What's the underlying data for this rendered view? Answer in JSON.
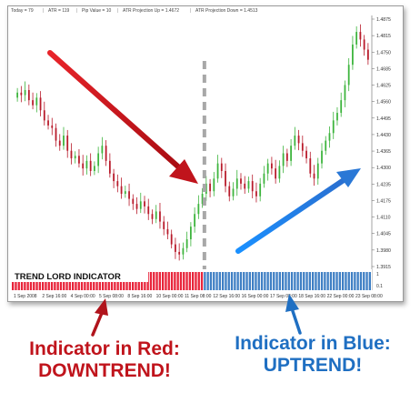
{
  "info_bar": {
    "today": "Today = 79",
    "atr": "ATR = 119",
    "pip_value": "Pip Value = 10",
    "atr_up": "ATR Projection Up = 1.4672",
    "atr_down": "ATR Projection Down = 1.4513"
  },
  "indicator": {
    "label": "TREND LORD INDICATOR",
    "red_fraction": 0.535,
    "colors": {
      "red": "#e8243a",
      "blue": "#3f7fc4"
    }
  },
  "captions": {
    "red_line1": "Indicator in Red:",
    "red_line2": "DOWNTREND!",
    "blue_line1": "Indicator in Blue:",
    "blue_line2": "UPTREND!",
    "red_color": "#c0141c",
    "blue_color": "#1f6fc2"
  },
  "chart_data": {
    "type": "candlestick",
    "price_axis": [
      "1.4875",
      "1.4815",
      "1.4750",
      "1.4685",
      "1.4625",
      "1.4560",
      "1.4495",
      "1.4430",
      "1.4365",
      "1.4300",
      "1.4235",
      "1.4175",
      "1.4110",
      "1.4045",
      "1.3980",
      "1.3915"
    ],
    "indicator_axis": [
      "1",
      "0.1"
    ],
    "x_ticks": [
      "1 Sep 2008",
      "2 Sep 16:00",
      "4 Sep 00:00",
      "5 Sep 08:00",
      "8 Sep 16:00",
      "10 Sep 00:00",
      "11 Sep 08:00",
      "12 Sep 16:00",
      "16 Sep 00:00",
      "17 Sep 08:00",
      "18 Sep 16:00",
      "22 Sep 00:00",
      "23 Sep 08:00"
    ],
    "ylim": [
      1.3895,
      1.4895
    ],
    "colors": {
      "up": "#3cb43c",
      "down": "#b81a2a",
      "divider": "#a8a8a8"
    },
    "closes": [
      1.459,
      1.458,
      1.46,
      1.456,
      1.454,
      1.457,
      1.452,
      1.448,
      1.446,
      1.445,
      1.44,
      1.438,
      1.442,
      1.436,
      1.433,
      1.434,
      1.431,
      1.429,
      1.432,
      1.428,
      1.43,
      1.435,
      1.438,
      1.432,
      1.427,
      1.424,
      1.422,
      1.419,
      1.42,
      1.417,
      1.415,
      1.413,
      1.416,
      1.414,
      1.411,
      1.409,
      1.412,
      1.408,
      1.405,
      1.403,
      1.399,
      1.396,
      1.395,
      1.3975,
      1.401,
      1.406,
      1.411,
      1.415,
      1.419,
      1.423,
      1.42,
      1.425,
      1.431,
      1.428,
      1.422,
      1.418,
      1.421,
      1.425,
      1.423,
      1.421,
      1.424,
      1.42,
      1.418,
      1.423,
      1.427,
      1.431,
      1.429,
      1.425,
      1.43,
      1.435,
      1.432,
      1.438,
      1.442,
      1.439,
      1.436,
      1.433,
      1.427,
      1.425,
      1.431,
      1.436,
      1.44,
      1.443,
      1.448,
      1.451,
      1.456,
      1.462,
      1.47,
      1.478,
      1.483,
      1.48,
      1.476,
      1.472
    ]
  }
}
